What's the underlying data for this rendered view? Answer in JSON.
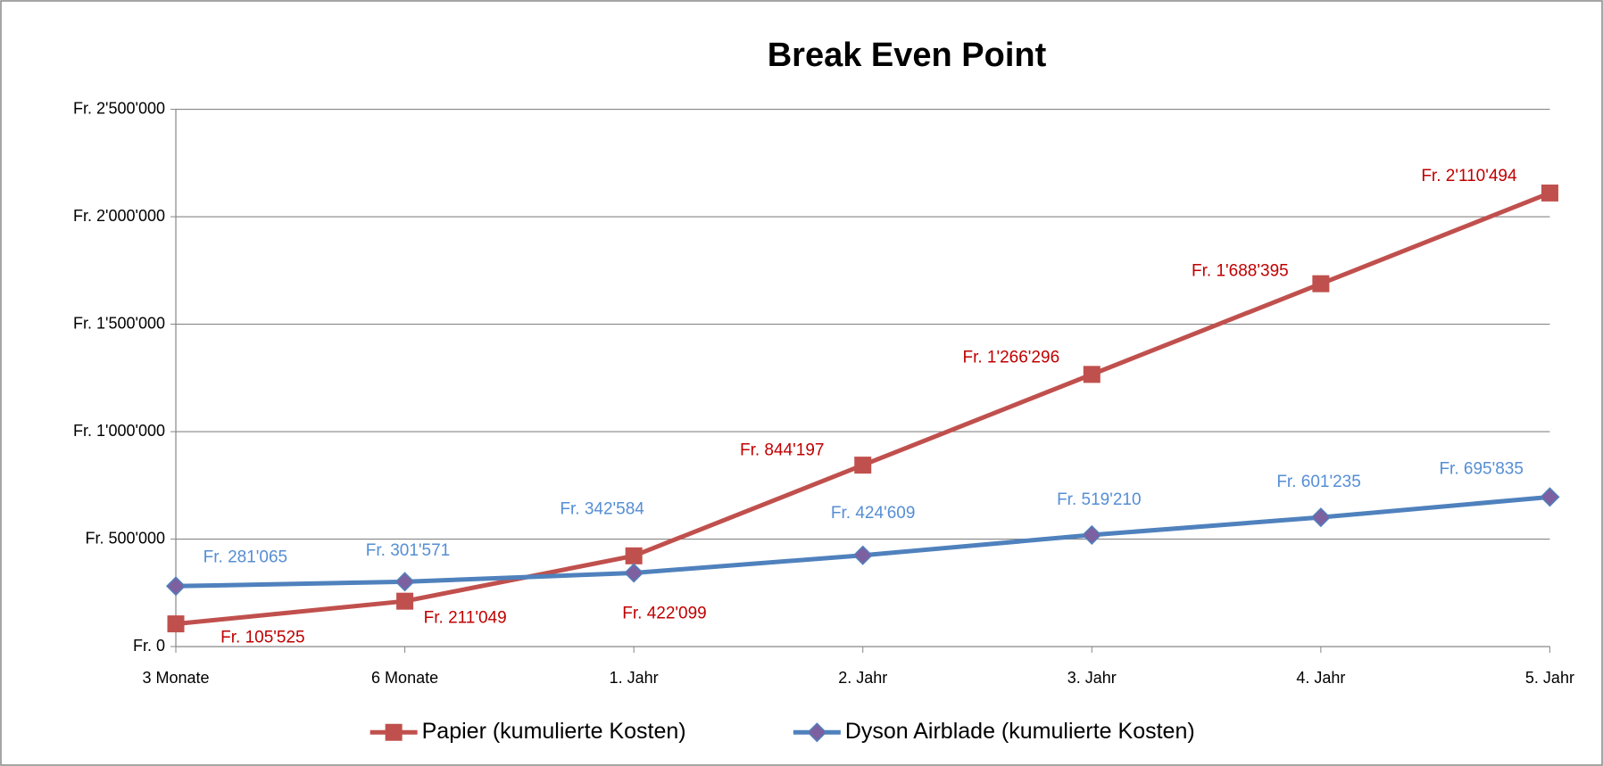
{
  "chart_data": {
    "type": "line",
    "title": "Break Even Point",
    "categories": [
      "3 Monate",
      "6 Monate",
      "1. Jahr",
      "2. Jahr",
      "3. Jahr",
      "4. Jahr",
      "5. Jahr"
    ],
    "series": [
      {
        "name": "Papier (kumulierte Kosten)",
        "color": "#c0504d",
        "marker": "square",
        "values": [
          105525,
          211049,
          422099,
          844197,
          1266296,
          1688395,
          2110494
        ],
        "value_labels": [
          "Fr. 105'525",
          "Fr. 211'049",
          "Fr. 422'099",
          "Fr. 844'197",
          "Fr. 1'266'296",
          "Fr. 1'688'395",
          "Fr. 2'110'494"
        ],
        "label_color": "#c00000"
      },
      {
        "name": "Dyson Airblade (kumulierte Kosten)",
        "color": "#4f81bd",
        "marker": "diamond",
        "values": [
          281065,
          301571,
          342584,
          424609,
          519210,
          601235,
          695835
        ],
        "value_labels": [
          "Fr. 281'065",
          "Fr. 301'571",
          "Fr. 342'584",
          "Fr. 424'609",
          "Fr. 519'210",
          "Fr. 601'235",
          "Fr. 695'835"
        ],
        "label_color": "#558ed5"
      }
    ],
    "ylim": [
      0,
      2500000
    ],
    "yticks": [
      {
        "value": 0,
        "label": "Fr. 0"
      },
      {
        "value": 500000,
        "label": "Fr. 500'000"
      },
      {
        "value": 1000000,
        "label": "Fr. 1'000'000"
      },
      {
        "value": 1500000,
        "label": "Fr. 1'500'000"
      },
      {
        "value": 2000000,
        "label": "Fr. 2'000'000"
      },
      {
        "value": 2500000,
        "label": "Fr. 2'500'000"
      }
    ],
    "grid": true,
    "legend": "bottom"
  }
}
